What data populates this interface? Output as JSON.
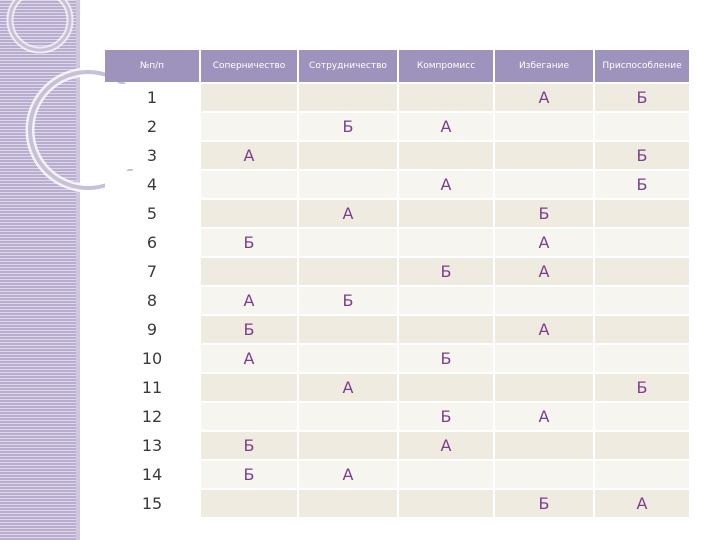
{
  "table": {
    "headers": [
      "№п/п",
      "Соперничество",
      "Сотрудничество",
      "Компромисс",
      "Избегание",
      "Приспособление"
    ],
    "rows": [
      [
        "1",
        "",
        "",
        "",
        "А",
        "Б"
      ],
      [
        "2",
        "",
        "Б",
        "А",
        "",
        ""
      ],
      [
        "3",
        "А",
        "",
        "",
        "",
        "Б"
      ],
      [
        "4",
        "",
        "",
        "А",
        "",
        "Б"
      ],
      [
        "5",
        "",
        "А",
        "",
        "Б",
        ""
      ],
      [
        "6",
        "Б",
        "",
        "",
        "А",
        ""
      ],
      [
        "7",
        "",
        "",
        "Б",
        "А",
        ""
      ],
      [
        "8",
        "А",
        "Б",
        "",
        "",
        ""
      ],
      [
        "9",
        "Б",
        "",
        "",
        "А",
        ""
      ],
      [
        "10",
        "А",
        "",
        "Б",
        "",
        ""
      ],
      [
        "11",
        "",
        "А",
        "",
        "",
        "Б"
      ],
      [
        "12",
        "",
        "",
        "Б",
        "А",
        ""
      ],
      [
        "13",
        "Б",
        "",
        "А",
        "",
        ""
      ],
      [
        "14",
        "Б",
        "А",
        "",
        "",
        ""
      ],
      [
        "15",
        "",
        "",
        "",
        "Б",
        "А"
      ]
    ]
  },
  "colors": {
    "header_bg": "#9e93bd",
    "cell_text": "#7b3f8d",
    "row_bg": "#efebe0",
    "side_stripe": "#b9aed0"
  }
}
